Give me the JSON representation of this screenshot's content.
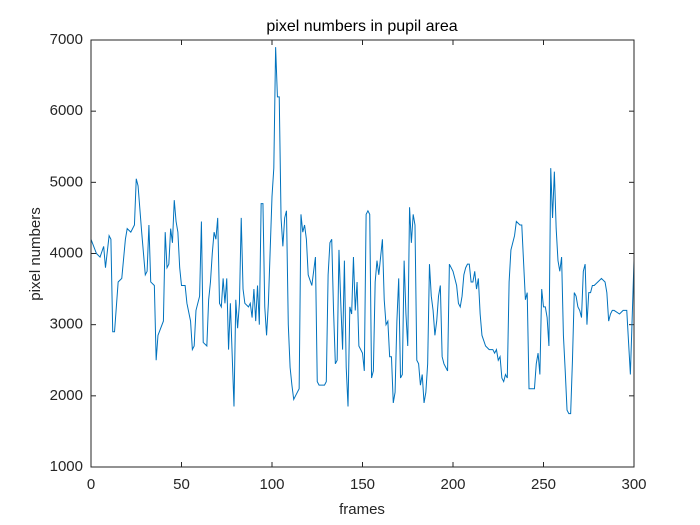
{
  "chart_data": {
    "type": "line",
    "title": "pixel numbers in pupil area",
    "xlabel": "frames",
    "ylabel": "pixel numbers",
    "xlim": [
      0,
      300
    ],
    "ylim": [
      1000,
      7000
    ],
    "xticks": [
      0,
      50,
      100,
      150,
      200,
      250,
      300
    ],
    "yticks": [
      1000,
      2000,
      3000,
      4000,
      5000,
      6000,
      7000
    ],
    "x": [
      0,
      3,
      5,
      7,
      8,
      10,
      11,
      12,
      13,
      15,
      17,
      19,
      20,
      22,
      24,
      25,
      26,
      28,
      29,
      30,
      31,
      32,
      33,
      35,
      36,
      37,
      40,
      41,
      42,
      43,
      44,
      45,
      46,
      47,
      48,
      49,
      50,
      52,
      53,
      55,
      56,
      57,
      58,
      60,
      61,
      62,
      64,
      65,
      66,
      67,
      68,
      69,
      70,
      71,
      72,
      73,
      74,
      75,
      76,
      77,
      79,
      80,
      81,
      82,
      83,
      84,
      85,
      87,
      88,
      89,
      90,
      91,
      92,
      93,
      94,
      95,
      96,
      97,
      98,
      100,
      101,
      102,
      103,
      104,
      105,
      106,
      107,
      108,
      109,
      110,
      111,
      112,
      113,
      115,
      116,
      117,
      118,
      119,
      120,
      122,
      123,
      124,
      125,
      126,
      129,
      130,
      131,
      132,
      133,
      134,
      135,
      136,
      137,
      138,
      139,
      140,
      141,
      142,
      143,
      144,
      145,
      146,
      147,
      148,
      150,
      151,
      152,
      153,
      154,
      155,
      156,
      157,
      158,
      159,
      161,
      162,
      163,
      164,
      165,
      166,
      167,
      168,
      169,
      170,
      171,
      172,
      173,
      174,
      175,
      176,
      177,
      178,
      179,
      180,
      181,
      182,
      183,
      184,
      185,
      186,
      187,
      188,
      189,
      190,
      191,
      192,
      193,
      194,
      195,
      196,
      197,
      198,
      200,
      202,
      203,
      204,
      205,
      206,
      207,
      208,
      209,
      210,
      211,
      212,
      213,
      214,
      215,
      216,
      218,
      220,
      222,
      223,
      224,
      225,
      226,
      227,
      228,
      229,
      230,
      231,
      232,
      234,
      235,
      237,
      238,
      240,
      241,
      242,
      243,
      245,
      246,
      247,
      248,
      249,
      250,
      251,
      252,
      253,
      254,
      255,
      256,
      257,
      258,
      259,
      260,
      261,
      262,
      263,
      264,
      265,
      266,
      267,
      268,
      269,
      270,
      271,
      272,
      273,
      274,
      275,
      276,
      277,
      278,
      280,
      282,
      284,
      285,
      286,
      287,
      288,
      289,
      292,
      294,
      296,
      298,
      300
    ],
    "series": [
      {
        "color": "#0072bd",
        "values": [
          4200,
          4000,
          3950,
          4100,
          3800,
          4250,
          4200,
          2900,
          2900,
          3600,
          3650,
          4200,
          4350,
          4300,
          4400,
          5050,
          4950,
          4300,
          4000,
          3700,
          3750,
          4400,
          3600,
          3550,
          2500,
          2850,
          3050,
          4300,
          3800,
          3850,
          4350,
          4150,
          4750,
          4450,
          4300,
          3800,
          3550,
          3550,
          3300,
          3050,
          2650,
          2700,
          3200,
          3400,
          4450,
          2750,
          2700,
          3350,
          3600,
          4000,
          4300,
          4200,
          4500,
          3300,
          3250,
          3650,
          3300,
          3650,
          2650,
          3300,
          1850,
          3350,
          2950,
          3300,
          4500,
          3500,
          3300,
          3250,
          3300,
          3100,
          3500,
          3050,
          3550,
          3000,
          4700,
          4700,
          3250,
          2850,
          3300,
          4800,
          5200,
          6900,
          6200,
          6200,
          4500,
          4100,
          4500,
          4600,
          3000,
          2400,
          2150,
          1950,
          2000,
          2100,
          4550,
          4300,
          4400,
          4200,
          3700,
          3550,
          3750,
          3950,
          2200,
          2150,
          2150,
          2200,
          3700,
          4150,
          4200,
          3200,
          2450,
          2500,
          4050,
          3300,
          2650,
          3900,
          2400,
          1850,
          3250,
          3150,
          3950,
          3200,
          3600,
          2700,
          2600,
          2350,
          4550,
          4600,
          4550,
          2250,
          2350,
          3600,
          3900,
          3700,
          4200,
          3350,
          3000,
          3050,
          2550,
          2550,
          1900,
          2050,
          3050,
          3650,
          2250,
          2300,
          3900,
          3150,
          2700,
          4650,
          4150,
          4550,
          4400,
          2500,
          2450,
          2150,
          2300,
          1900,
          2050,
          2450,
          3850,
          3400,
          3200,
          2850,
          3050,
          3400,
          3550,
          2550,
          2450,
          2400,
          2350,
          3850,
          3750,
          3550,
          3300,
          3250,
          3400,
          3700,
          3800,
          3850,
          3850,
          3600,
          3600,
          3750,
          3500,
          3650,
          3150,
          2850,
          2700,
          2650,
          2650,
          2600,
          2650,
          2500,
          2550,
          2250,
          2200,
          2300,
          2250,
          3600,
          4050,
          4250,
          4450,
          4400,
          4400,
          3350,
          3450,
          2100,
          2100,
          2100,
          2450,
          2600,
          2300,
          3500,
          3250,
          3250,
          3100,
          2700,
          5200,
          4500,
          5150,
          4350,
          3900,
          3750,
          3950,
          2850,
          2350,
          1800,
          1750,
          1750,
          2500,
          3450,
          3400,
          3250,
          3200,
          3100,
          3750,
          3850,
          3000,
          3450,
          3450,
          3550,
          3550,
          3600,
          3650,
          3600,
          3450,
          3050,
          3150,
          3200,
          3200,
          3150,
          3200,
          3200,
          2300,
          3900
        ]
      }
    ]
  }
}
